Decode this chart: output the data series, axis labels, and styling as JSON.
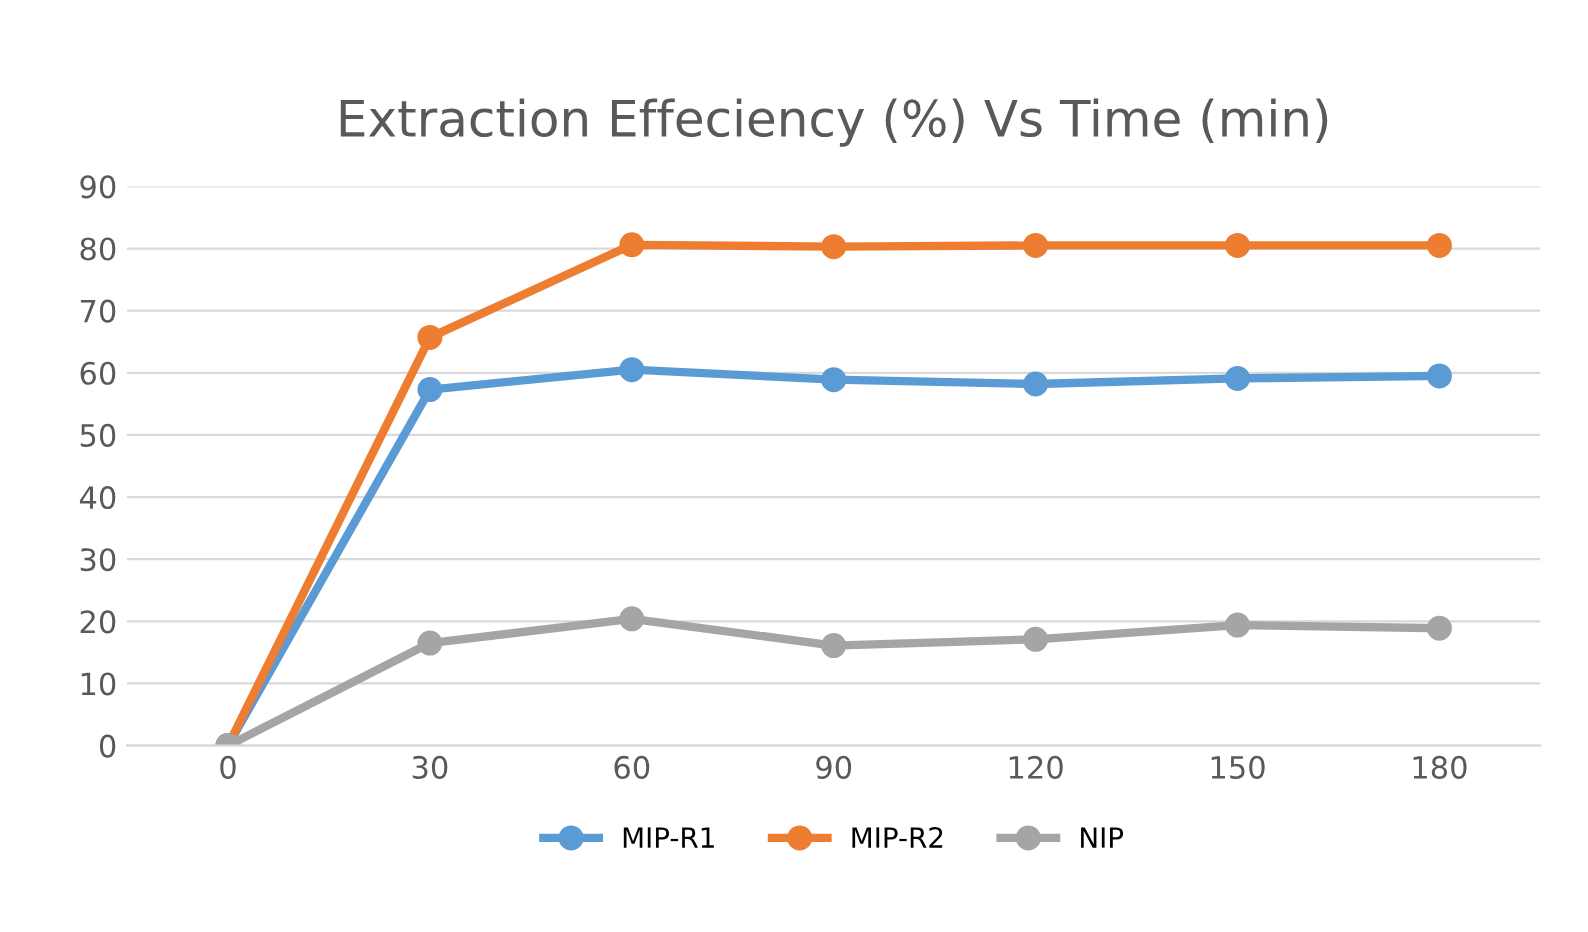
{
  "chart_data": {
    "type": "line",
    "title": "Extraction Effeciency (%) Vs Time (min)",
    "categories": [
      "0",
      "30",
      "60",
      "90",
      "120",
      "150",
      "180"
    ],
    "series": [
      {
        "name": "MIP-R1",
        "color": "#5b9bd5",
        "values": [
          0,
          57.3,
          60.5,
          58.9,
          58.2,
          59.1,
          59.5
        ]
      },
      {
        "name": "MIP-R2",
        "color": "#ed7d31",
        "values": [
          0,
          65.7,
          80.6,
          80.3,
          80.5,
          80.5,
          80.5
        ]
      },
      {
        "name": "NIP",
        "color": "#a5a5a5",
        "values": [
          0,
          16.5,
          20.4,
          16.1,
          17.1,
          19.4,
          18.9
        ]
      }
    ],
    "ylim": [
      0,
      90
    ],
    "yticks": [
      0,
      10,
      20,
      30,
      40,
      50,
      60,
      70,
      80,
      90
    ],
    "grid": "y",
    "legend": "bottom",
    "marker": "circle",
    "line_style": "solid"
  }
}
